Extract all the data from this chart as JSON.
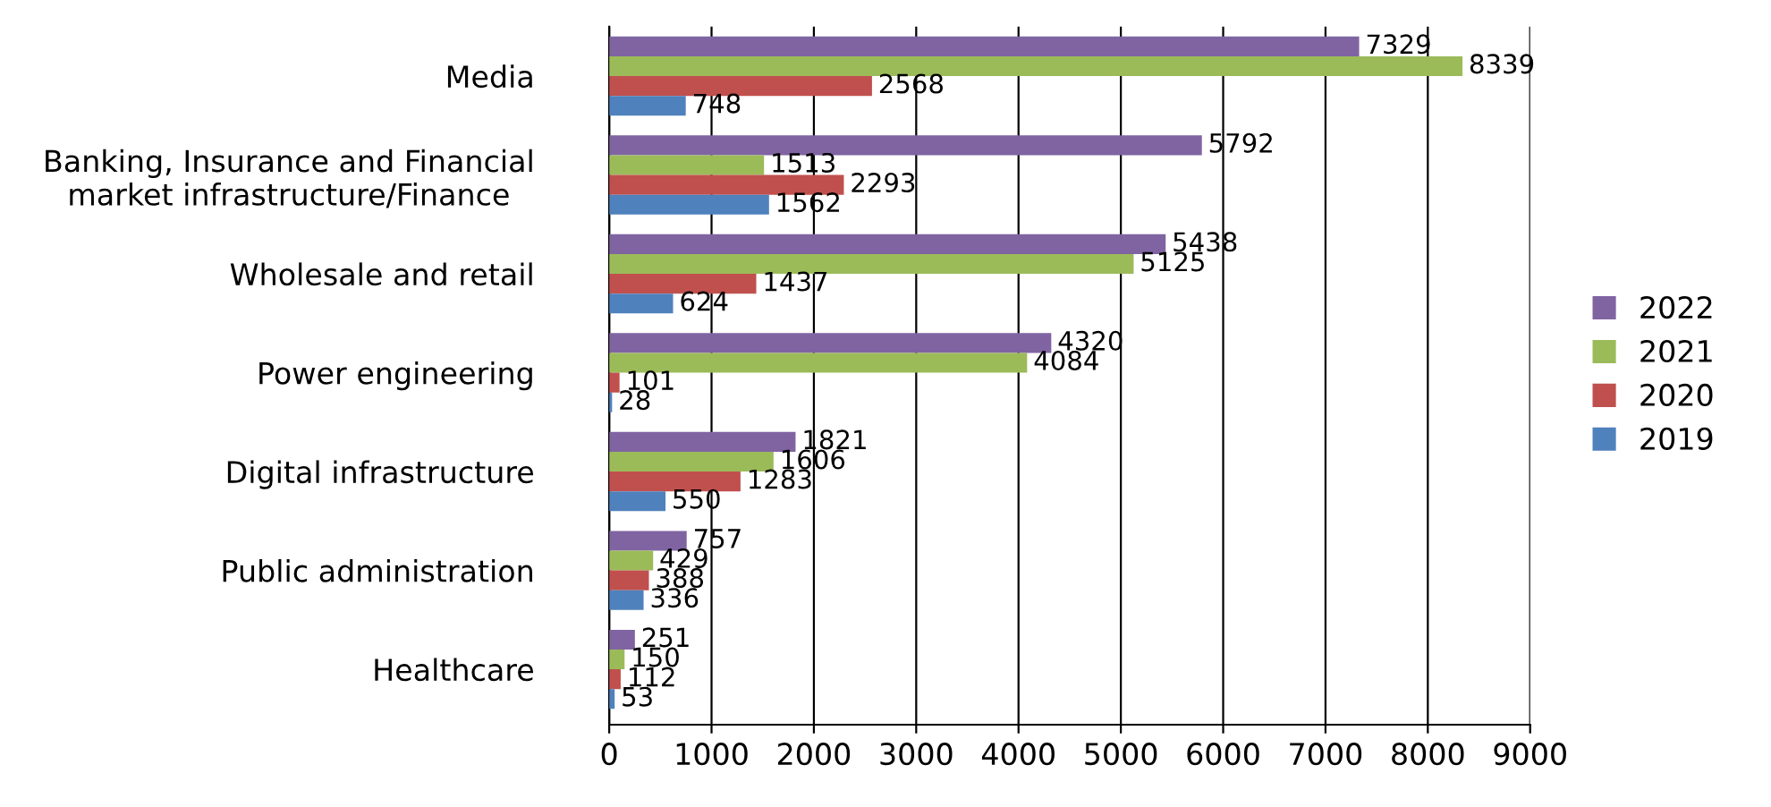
{
  "chart_data": {
    "type": "bar",
    "orientation": "horizontal",
    "categories": [
      "Media",
      "Banking, Insurance and Financial\nmarket infrastructure/Finance",
      "Wholesale and retail",
      "Power engineering",
      "Digital infrastructure",
      "Public administration",
      "Healthcare"
    ],
    "series": [
      {
        "name": "2022",
        "color": "#8064a2",
        "values": [
          7329,
          5792,
          5438,
          4320,
          1821,
          757,
          251
        ]
      },
      {
        "name": "2021",
        "color": "#9bbb59",
        "values": [
          8339,
          1513,
          5125,
          4084,
          1606,
          429,
          150
        ]
      },
      {
        "name": "2020",
        "color": "#c0504d",
        "values": [
          2568,
          2293,
          1437,
          101,
          1283,
          388,
          112
        ]
      },
      {
        "name": "2019",
        "color": "#4f81bd",
        "values": [
          748,
          1562,
          624,
          28,
          550,
          336,
          53
        ]
      }
    ],
    "xlim": [
      0,
      9000
    ],
    "xticks": [
      0,
      1000,
      2000,
      3000,
      4000,
      5000,
      6000,
      7000,
      8000,
      9000
    ],
    "grid": "x",
    "legend": "right",
    "data_labels": true
  }
}
